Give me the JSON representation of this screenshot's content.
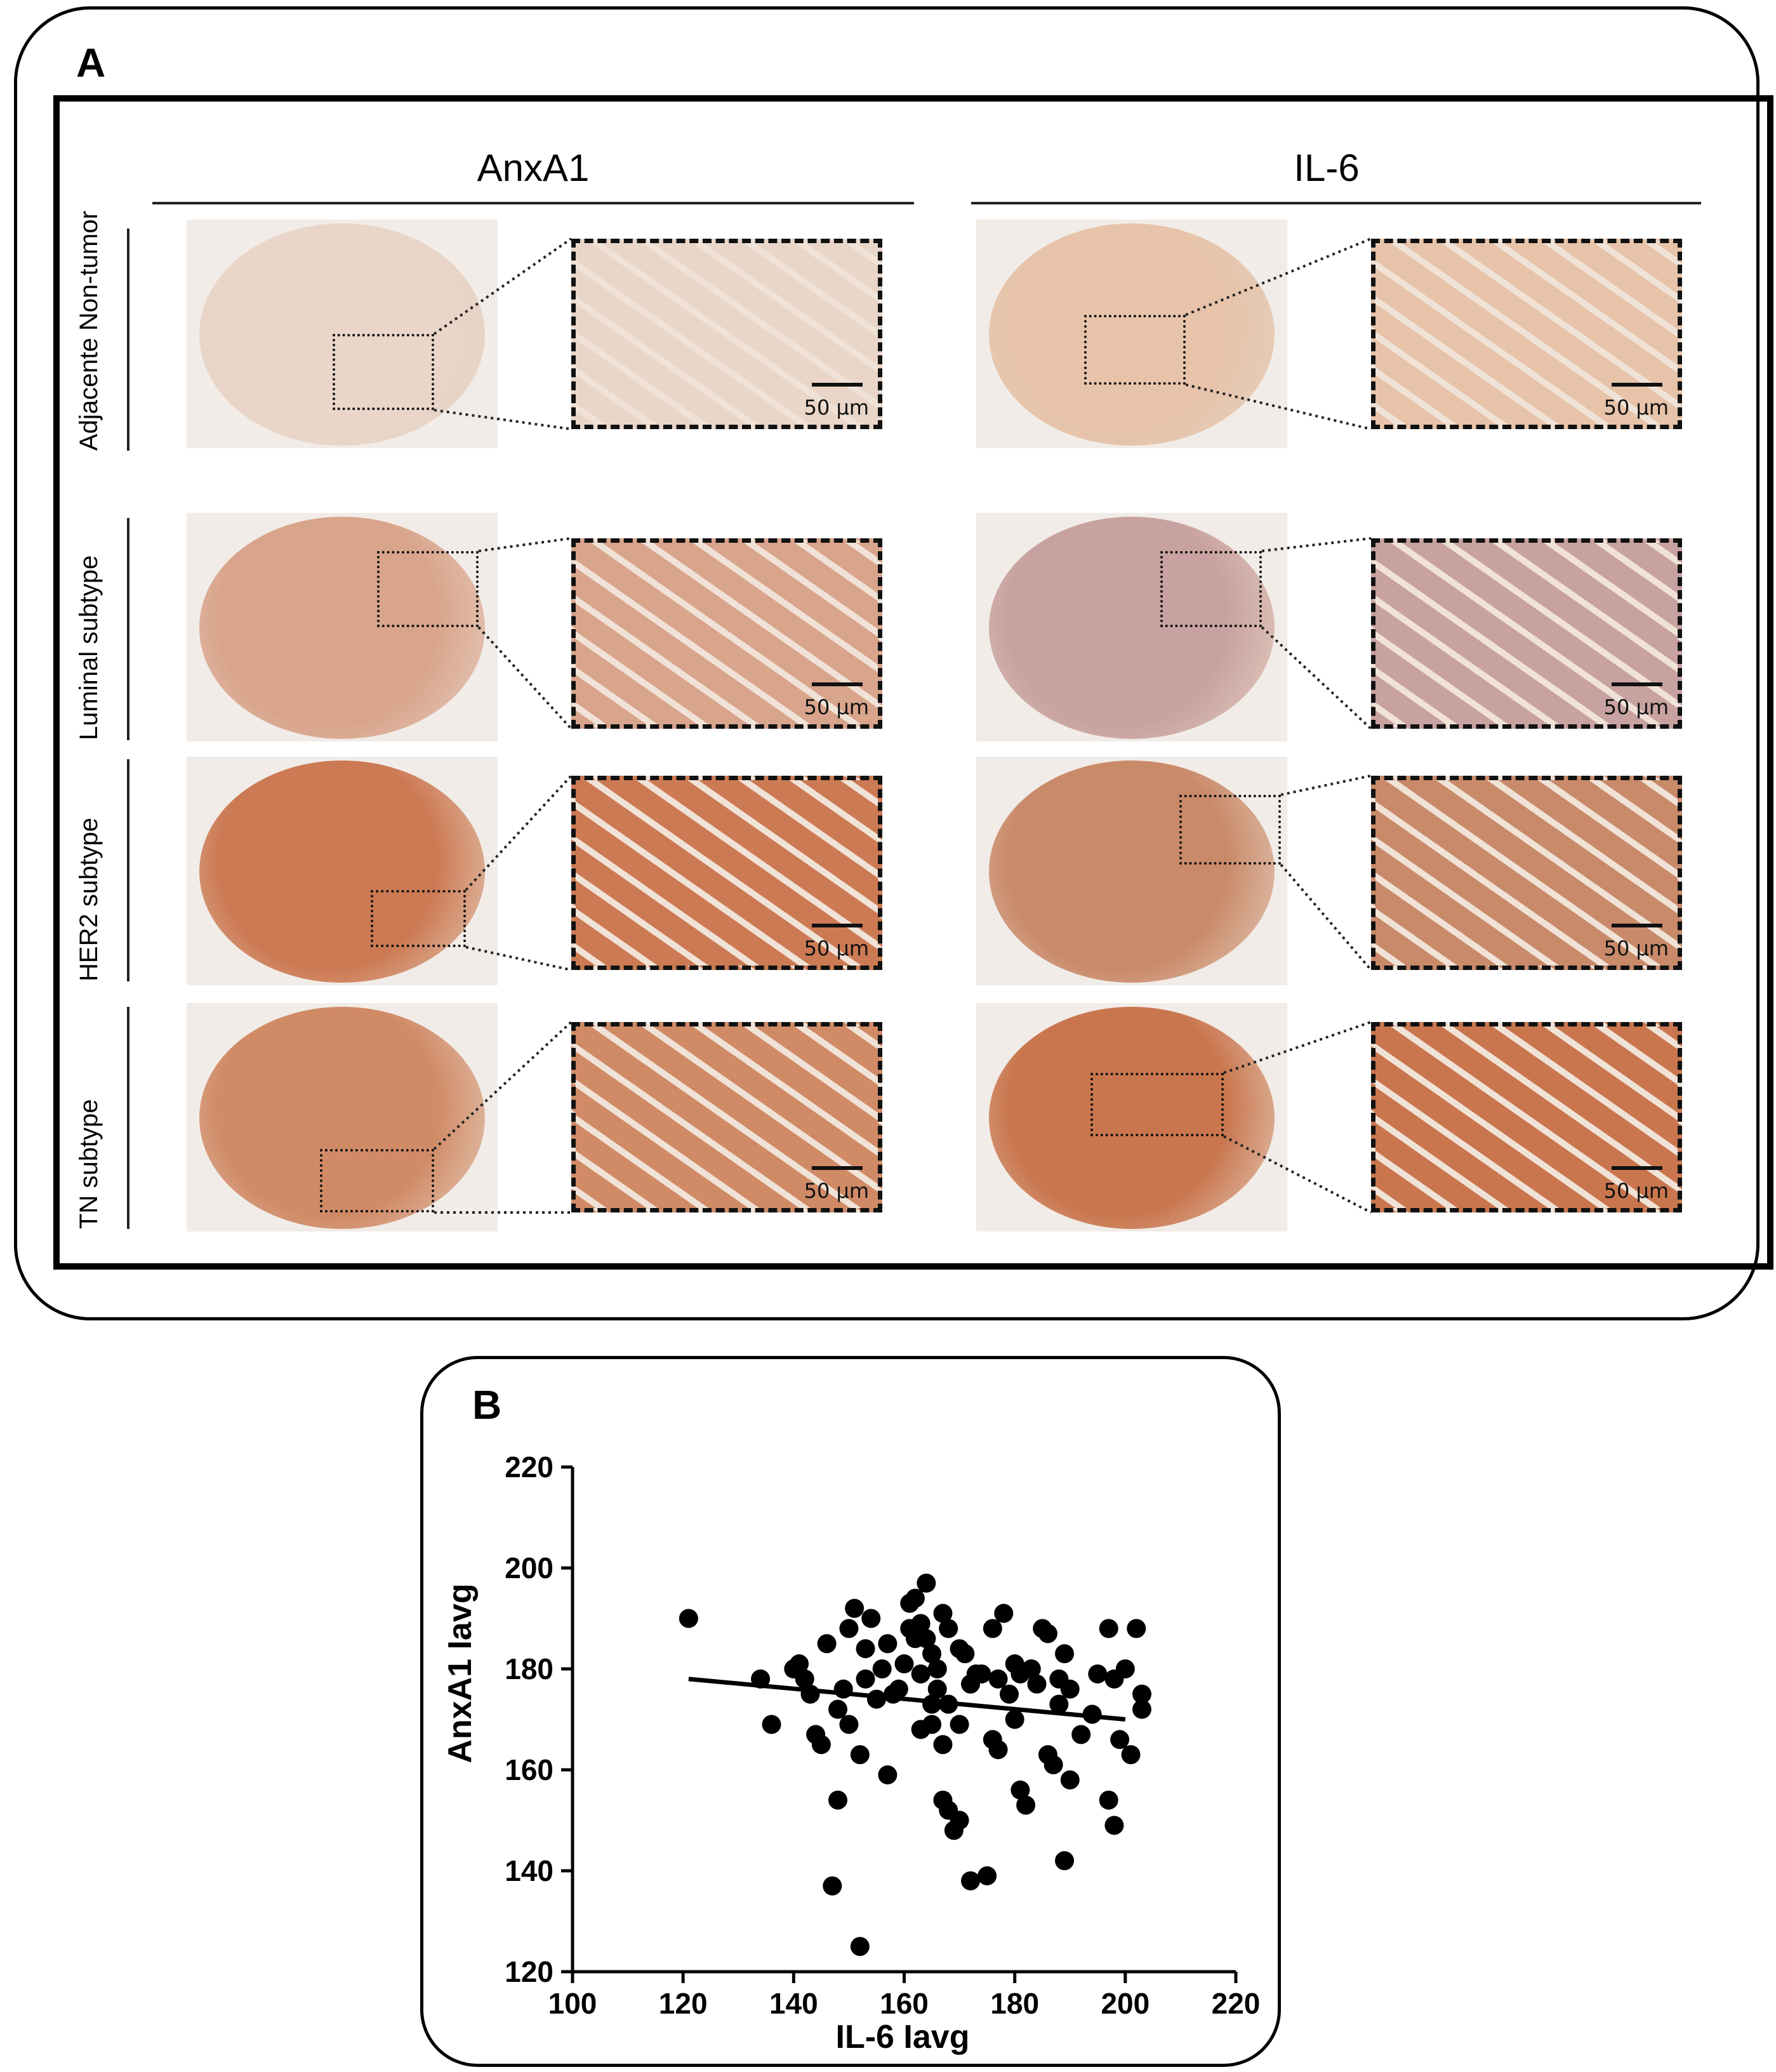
{
  "panelA": {
    "label": "A",
    "columns": [
      "AnxA1",
      "IL-6"
    ],
    "rows": [
      "Adjacente Non-tumor",
      "Luminal subtype",
      "HER2 subtype",
      "TN subtype"
    ],
    "scalebar": "50 µm",
    "stain": {
      "anxa1": [
        "#e9d6c9",
        "#d9a48c",
        "#cc7a53",
        "#d08a66"
      ],
      "il6": [
        "#e6c3a9",
        "#c8a2a0",
        "#c98a6a",
        "#c9764e"
      ]
    }
  },
  "panelB": {
    "label": "B",
    "chart_data": {
      "type": "scatter",
      "xlabel": "IL-6 Iavg",
      "ylabel": "AnxA1 Iavg",
      "xlim": [
        100,
        220
      ],
      "ylim": [
        120,
        220
      ],
      "xticks": [
        100,
        120,
        140,
        160,
        180,
        200,
        220
      ],
      "yticks": [
        120,
        140,
        160,
        180,
        200,
        220
      ],
      "trendline": {
        "x": [
          121,
          200
        ],
        "y": [
          178,
          170
        ]
      },
      "points": [
        [
          121,
          190
        ],
        [
          134,
          178
        ],
        [
          136,
          169
        ],
        [
          140,
          180
        ],
        [
          141,
          181
        ],
        [
          142,
          178
        ],
        [
          143,
          175
        ],
        [
          144,
          167
        ],
        [
          145,
          165
        ],
        [
          146,
          185
        ],
        [
          147,
          137
        ],
        [
          148,
          154
        ],
        [
          148,
          172
        ],
        [
          149,
          176
        ],
        [
          150,
          188
        ],
        [
          150,
          169
        ],
        [
          151,
          192
        ],
        [
          152,
          163
        ],
        [
          152,
          125
        ],
        [
          153,
          184
        ],
        [
          153,
          178
        ],
        [
          154,
          190
        ],
        [
          155,
          174
        ],
        [
          156,
          180
        ],
        [
          157,
          185
        ],
        [
          157,
          159
        ],
        [
          158,
          175
        ],
        [
          159,
          176
        ],
        [
          160,
          181
        ],
        [
          161,
          193
        ],
        [
          161,
          188
        ],
        [
          162,
          186
        ],
        [
          162,
          194
        ],
        [
          163,
          189
        ],
        [
          163,
          179
        ],
        [
          163,
          168
        ],
        [
          164,
          197
        ],
        [
          164,
          186
        ],
        [
          165,
          183
        ],
        [
          165,
          173
        ],
        [
          165,
          169
        ],
        [
          166,
          180
        ],
        [
          166,
          176
        ],
        [
          167,
          191
        ],
        [
          167,
          165
        ],
        [
          167,
          154
        ],
        [
          168,
          188
        ],
        [
          168,
          173
        ],
        [
          168,
          152
        ],
        [
          169,
          148
        ],
        [
          170,
          184
        ],
        [
          170,
          169
        ],
        [
          170,
          150
        ],
        [
          171,
          183
        ],
        [
          172,
          138
        ],
        [
          172,
          177
        ],
        [
          173,
          179
        ],
        [
          174,
          179
        ],
        [
          175,
          139
        ],
        [
          176,
          188
        ],
        [
          176,
          166
        ],
        [
          177,
          164
        ],
        [
          177,
          178
        ],
        [
          178,
          191
        ],
        [
          179,
          175
        ],
        [
          180,
          181
        ],
        [
          180,
          170
        ],
        [
          181,
          179
        ],
        [
          181,
          156
        ],
        [
          182,
          153
        ],
        [
          183,
          180
        ],
        [
          184,
          177
        ],
        [
          185,
          188
        ],
        [
          186,
          187
        ],
        [
          186,
          163
        ],
        [
          187,
          161
        ],
        [
          188,
          178
        ],
        [
          188,
          173
        ],
        [
          189,
          183
        ],
        [
          189,
          142
        ],
        [
          190,
          176
        ],
        [
          190,
          158
        ],
        [
          192,
          167
        ],
        [
          194,
          171
        ],
        [
          195,
          179
        ],
        [
          197,
          188
        ],
        [
          197,
          154
        ],
        [
          198,
          149
        ],
        [
          198,
          178
        ],
        [
          199,
          166
        ],
        [
          200,
          180
        ],
        [
          201,
          163
        ],
        [
          202,
          188
        ],
        [
          203,
          172
        ],
        [
          203,
          175
        ]
      ]
    }
  }
}
